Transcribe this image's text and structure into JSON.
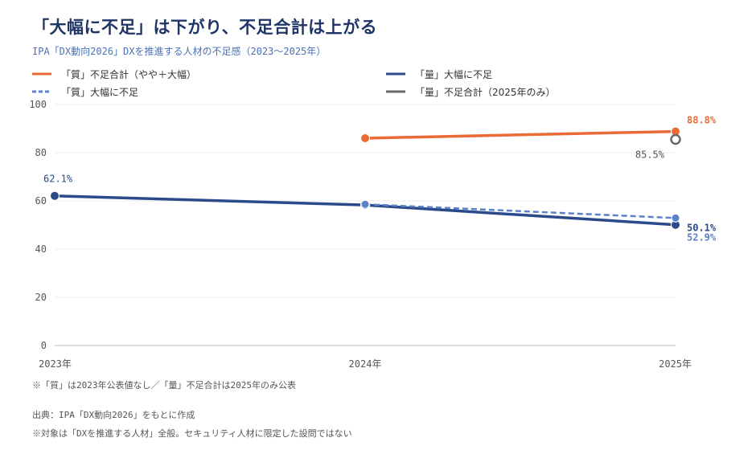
{
  "title": "「大幅に不足」は下がり、不足合計は上がる",
  "subtitle": "IPA「DX動向2026」DXを推進する人材の不足感（2023〜2025年）",
  "legend": [
    "「質」不足合計（やや＋大幅）",
    "「量」大幅に不足",
    "「質」大幅に不足",
    "「量」不足合計（2025年のみ）"
  ],
  "notes": {
    "footnote": "※「質」は2023年公表値なし／「量」不足合計は2025年のみ公表",
    "source": "出典：IPA「DX動向2026」をもとに作成",
    "scope": "※対象は「DXを推進する人材」全般。セキュリティ人材に限定した設問ではない"
  },
  "colors": {
    "orange": "#ec6a35",
    "navy": "#2a4a8a",
    "blue_dashed": "#5b82c8",
    "gray": "#6b6b6b"
  },
  "chart_data": {
    "type": "line",
    "title": "「大幅に不足」は下がり、不足合計は上がる",
    "x": [
      "2023年",
      "2024年",
      "2025年"
    ],
    "ylim": [
      0,
      100
    ],
    "yticks": [
      0,
      20,
      40,
      60,
      80,
      100
    ],
    "grid": true,
    "series": [
      {
        "name": "「質」不足合計（やや＋大幅）",
        "style": "solid",
        "color": "#ec6a35",
        "marker": "filled",
        "values": [
          null,
          86.0,
          88.8
        ],
        "label": "88.8%"
      },
      {
        "name": "「量」大幅に不足",
        "style": "solid",
        "color": "#2a4a8a",
        "marker": "filled",
        "values": [
          62.1,
          58.3,
          50.1
        ],
        "labels": [
          "62.1%",
          null,
          "50.1%"
        ]
      },
      {
        "name": "「質」大幅に不足",
        "style": "dashed",
        "color": "#5b82c8",
        "marker": "filled",
        "values": [
          null,
          58.6,
          52.9
        ],
        "label": "52.9%"
      },
      {
        "name": "「量」不足合計（2025年のみ）",
        "style": "marker-only",
        "color": "#6b6b6b",
        "marker": "hollow",
        "values": [
          null,
          null,
          85.5
        ],
        "label": "85.5%"
      }
    ]
  }
}
